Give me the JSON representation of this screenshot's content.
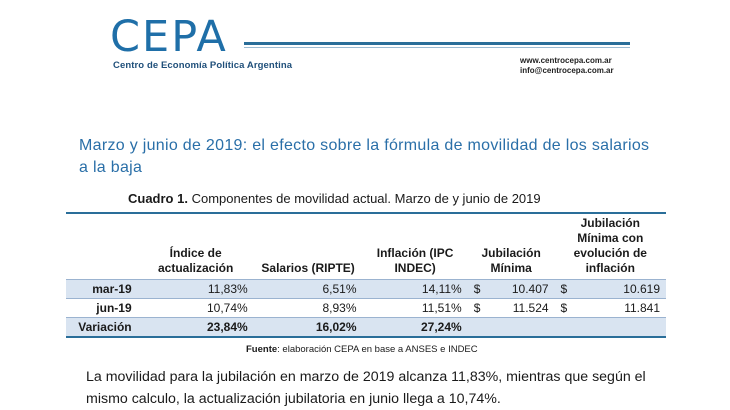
{
  "header": {
    "logo_text": "CEPA",
    "logo_tagline": "Centro de Economía Política Argentina",
    "website": "www.centrocepa.com.ar",
    "email": "info@centrocepa.com.ar"
  },
  "title": "Marzo y junio de 2019: el efecto sobre la fórmula de movilidad de los salarios a la baja",
  "caption": {
    "label": "Cuadro 1.",
    "text": " Componentes de movilidad actual. Marzo de y junio de 2019"
  },
  "table": {
    "headers": [
      "Índice de actualización",
      "Salarios (RIPTE)",
      "Inflación (IPC INDEC)",
      "Jubilación Mínima",
      "Jubilación Mínima con evolución de inflación"
    ],
    "rows": [
      {
        "label": "mar-19",
        "indice": "11,83%",
        "salarios": "6,51%",
        "inflacion": "14,11%",
        "jub_cur": "$",
        "jub": "10.407",
        "jubinf_cur": "$",
        "jubinf": "10.619"
      },
      {
        "label": "jun-19",
        "indice": "10,74%",
        "salarios": "8,93%",
        "inflacion": "11,51%",
        "jub_cur": "$",
        "jub": "11.524",
        "jubinf_cur": "$",
        "jubinf": "11.841"
      },
      {
        "label": "Variación",
        "indice": "23,84%",
        "salarios": "16,02%",
        "inflacion": "27,24%"
      }
    ]
  },
  "source": {
    "label": "Fuente",
    "text": ": elaboración CEPA en base a ANSES e INDEC"
  },
  "paragraph": "La movilidad para la jubilación en marzo de 2019 alcanza 11,83%, mientras que según el mismo calculo, la actualización jubilatoria en junio llega a 10,74%.",
  "colors": {
    "brand_blue": "#1f6fa8",
    "row_shade": "#d9e4f1",
    "rule": "#2a6e99"
  }
}
